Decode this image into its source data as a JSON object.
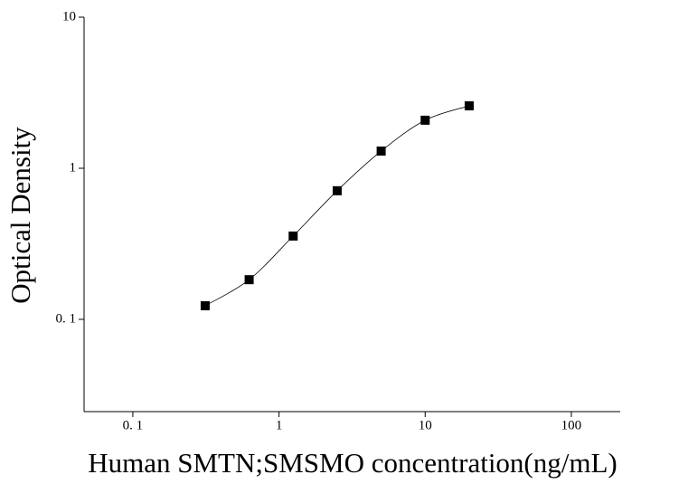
{
  "chart_data": {
    "type": "scatter",
    "xlabel": "Human SMTN;SMSMO concentration(ng/mL)",
    "ylabel": "Optical Density",
    "xscale": "log",
    "yscale": "log",
    "xlim": [
      0.0464,
      216
    ],
    "ylim": [
      0.0245,
      10
    ],
    "xticks": [
      {
        "value": 0.1,
        "label": "0. 1"
      },
      1,
      10,
      100
    ],
    "yticks": [
      {
        "value": 0.1,
        "label": "0. 1"
      },
      1,
      10
    ],
    "fit_line": true,
    "series": [
      {
        "color": "#000000",
        "x": [
          0.3125,
          0.625,
          1.25,
          2.5,
          5,
          10,
          20
        ],
        "values": [
          0.123,
          0.183,
          0.356,
          0.71,
          1.3,
          2.08,
          2.59
        ]
      }
    ]
  }
}
